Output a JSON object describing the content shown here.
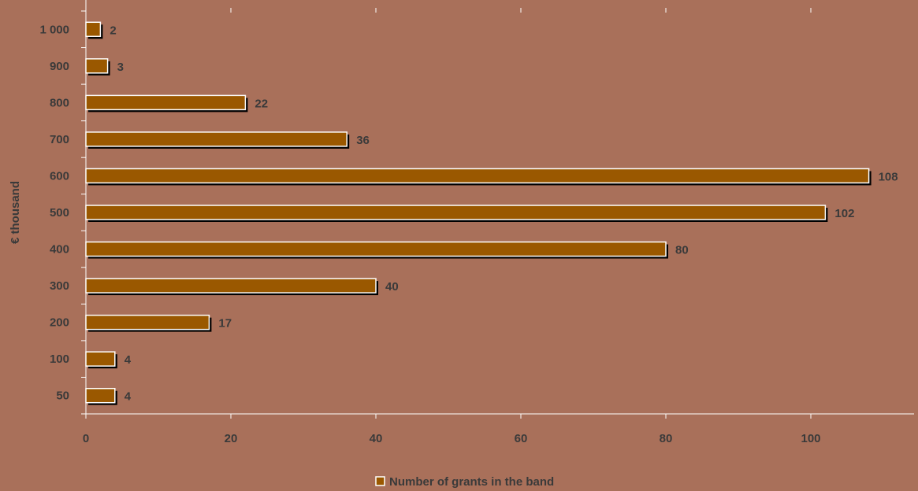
{
  "chart_data": {
    "type": "bar",
    "orientation": "horizontal",
    "categories": [
      "50",
      "100",
      "200",
      "300",
      "400",
      "500",
      "600",
      "700",
      "800",
      "900",
      "1 000"
    ],
    "series": [
      {
        "name": "Number of grants in the band",
        "values": [
          4,
          4,
          17,
          40,
          80,
          102,
          108,
          36,
          22,
          3,
          2
        ]
      }
    ],
    "ylabel": "€ thousand",
    "xlabel": "",
    "xlim": [
      0,
      115
    ],
    "x_ticks": [
      0,
      20,
      40,
      60,
      80,
      100
    ],
    "x_tick_labels": [
      "0",
      "20",
      "40",
      "60",
      "80",
      "100"
    ],
    "data_labels": true,
    "legend": "bottom-center",
    "grid": false,
    "colors": {
      "background": "#A9705A",
      "bar_fill": "#9A5800",
      "bar_border": "#FFFFFF",
      "bar_shadow": "#000000",
      "axis": "#FFFFFF",
      "text": "#3A3A3A"
    }
  }
}
